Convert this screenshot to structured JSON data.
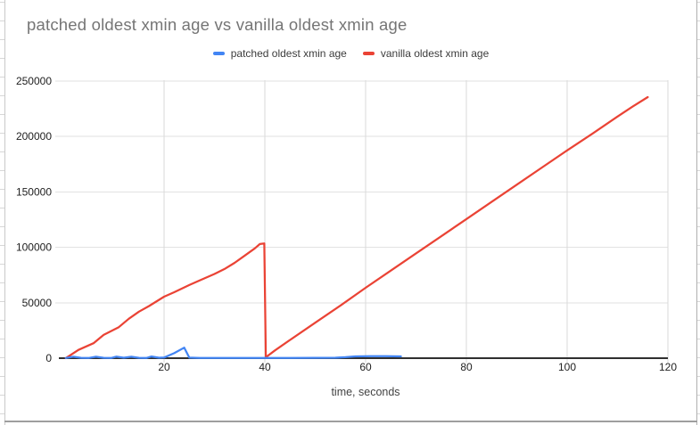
{
  "chart": {
    "title": "patched oldest xmin age vs vanilla oldest xmin age",
    "x_axis_title": "time, seconds",
    "legend": [
      {
        "label": "patched oldest xmin age",
        "color": "#4285f4"
      },
      {
        "label": "vanilla oldest xmin age",
        "color": "#ea4335"
      }
    ]
  },
  "chart_data": {
    "type": "line",
    "title": "patched oldest xmin age vs vanilla oldest xmin age",
    "xlabel": "time, seconds",
    "ylabel": "",
    "xlim": [
      0,
      120
    ],
    "ylim": [
      0,
      250000
    ],
    "x_ticks": [
      20,
      40,
      60,
      80,
      100,
      120
    ],
    "y_ticks": [
      0,
      50000,
      100000,
      150000,
      200000,
      250000
    ],
    "grid": true,
    "legend_position": "top",
    "series": [
      {
        "name": "vanilla oldest xmin age",
        "color": "#ea4335",
        "points": [
          [
            0.5,
            0
          ],
          [
            3,
            7500
          ],
          [
            6,
            13500
          ],
          [
            8,
            21000
          ],
          [
            11,
            28000
          ],
          [
            13,
            35500
          ],
          [
            15,
            42000
          ],
          [
            17,
            47000
          ],
          [
            20,
            55500
          ],
          [
            22,
            59500
          ],
          [
            25,
            66000
          ],
          [
            27,
            70000
          ],
          [
            30,
            76000
          ],
          [
            32,
            80500
          ],
          [
            34,
            86000
          ],
          [
            36,
            92500
          ],
          [
            38,
            99000
          ],
          [
            39,
            103000
          ],
          [
            39.9,
            103500
          ],
          [
            40.2,
            800
          ],
          [
            42,
            7000
          ],
          [
            45,
            16500
          ],
          [
            50,
            32000
          ],
          [
            55,
            47500
          ],
          [
            60,
            63500
          ],
          [
            65,
            79000
          ],
          [
            70,
            94500
          ],
          [
            75,
            110000
          ],
          [
            80,
            125500
          ],
          [
            85,
            141000
          ],
          [
            90,
            156500
          ],
          [
            95,
            172000
          ],
          [
            100,
            187500
          ],
          [
            105,
            202500
          ],
          [
            110,
            218000
          ],
          [
            113,
            227000
          ],
          [
            116,
            235500
          ]
        ]
      },
      {
        "name": "patched oldest xmin age",
        "color": "#4285f4",
        "points": [
          [
            0.5,
            200
          ],
          [
            2,
            1300
          ],
          [
            3.5,
            300
          ],
          [
            5,
            200
          ],
          [
            6.5,
            1300
          ],
          [
            8,
            300
          ],
          [
            9.5,
            200
          ],
          [
            10.5,
            1400
          ],
          [
            12,
            400
          ],
          [
            13.5,
            1300
          ],
          [
            15,
            300
          ],
          [
            16.5,
            200
          ],
          [
            17.5,
            1500
          ],
          [
            19,
            400
          ],
          [
            20,
            600
          ],
          [
            22,
            4500
          ],
          [
            24,
            9500
          ],
          [
            25,
            500
          ],
          [
            27,
            250
          ],
          [
            30,
            250
          ],
          [
            35,
            250
          ],
          [
            40,
            250
          ],
          [
            45,
            250
          ],
          [
            50,
            300
          ],
          [
            54,
            400
          ],
          [
            56,
            900
          ],
          [
            58,
            1600
          ],
          [
            61,
            1800
          ],
          [
            64,
            1800
          ],
          [
            67,
            1600
          ]
        ]
      }
    ]
  }
}
